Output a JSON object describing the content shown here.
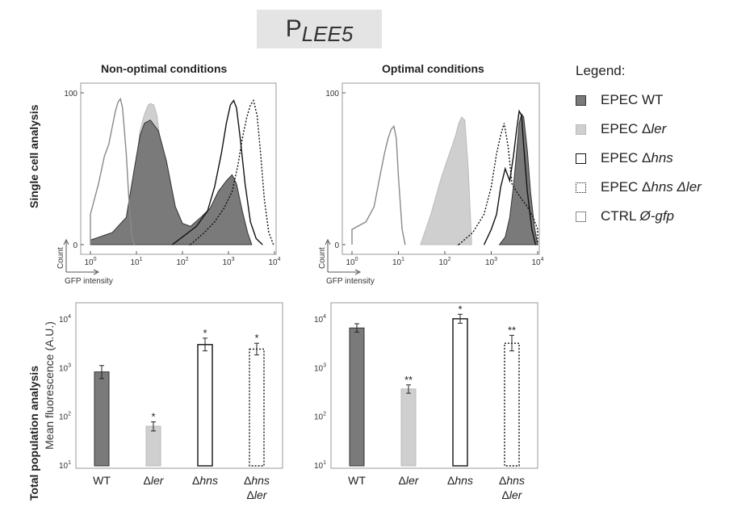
{
  "figure_title": {
    "main": "P",
    "sub": "LEE5"
  },
  "row_labels": {
    "top": "Single cell analysis",
    "bottom": "Total population analysis"
  },
  "panel_titles": {
    "left": "Non-optimal conditions",
    "right": "Optimal conditions"
  },
  "legend": {
    "heading": "Legend:",
    "items": [
      {
        "prefix": "EPEC WT",
        "italic": "",
        "style": "filled-dark"
      },
      {
        "prefix": "EPEC Δ",
        "italic": "ler",
        "style": "filled-light"
      },
      {
        "prefix": "EPEC Δ",
        "italic": "hns",
        "style": "outline-solid"
      },
      {
        "prefix": "EPEC Δ",
        "italic": "hns Δler",
        "style": "outline-dotted"
      },
      {
        "prefix": "CTRL ",
        "italic": "Ø-gfp",
        "style": "outline-gray"
      }
    ]
  },
  "colors": {
    "wt": "#7a7a7a",
    "ler": "#cfcfcf",
    "hns": "#111111",
    "ctrl": "#8a8a8a",
    "axis": "#555555"
  },
  "chart_data": [
    {
      "id": "hist-nonoptimal",
      "type": "area",
      "title": "Non-optimal conditions",
      "xlabel": "GFP intensity",
      "ylabel": "Count",
      "xscale": "log",
      "xlim": [
        1,
        10000
      ],
      "ylim": [
        0,
        100
      ],
      "yticks": [
        "0",
        "100"
      ],
      "xticks": [
        "10^0",
        "10^1",
        "10^2",
        "10^3",
        "10^4"
      ],
      "series": [
        {
          "name": "EPEC Δler",
          "style": "filled-light",
          "x": [
            6,
            8,
            10,
            12,
            15,
            18,
            20,
            24,
            28,
            35,
            45,
            60,
            80
          ],
          "y": [
            0,
            20,
            55,
            75,
            86,
            92,
            93,
            92,
            85,
            60,
            30,
            8,
            0
          ]
        },
        {
          "name": "EPEC WT",
          "style": "filled-dark",
          "x": [
            1,
            3,
            6,
            9,
            12,
            15,
            20,
            30,
            45,
            70,
            100,
            150,
            250,
            400,
            600,
            900,
            1200,
            1500,
            2000,
            2600,
            3200
          ],
          "y": [
            3,
            8,
            18,
            50,
            72,
            80,
            82,
            75,
            55,
            25,
            14,
            12,
            18,
            24,
            35,
            42,
            46,
            40,
            22,
            8,
            0
          ]
        },
        {
          "name": "CTRL Ø-gfp",
          "style": "outline-gray",
          "x": [
            1,
            1.5,
            2,
            2.5,
            3,
            3.5,
            4,
            4.5,
            5,
            6,
            7,
            8,
            9
          ],
          "y": [
            20,
            40,
            58,
            66,
            78,
            88,
            94,
            96,
            90,
            60,
            25,
            5,
            0
          ]
        },
        {
          "name": "EPEC Δhns",
          "style": "outline-solid",
          "x": [
            60,
            100,
            200,
            350,
            500,
            700,
            900,
            1100,
            1300,
            1500,
            1800,
            2300,
            3000,
            4000,
            5500
          ],
          "y": [
            0,
            5,
            12,
            22,
            38,
            60,
            80,
            92,
            95,
            90,
            70,
            40,
            15,
            4,
            0
          ]
        },
        {
          "name": "EPEC Δhns Δler",
          "style": "outline-dotted",
          "x": [
            150,
            300,
            500,
            800,
            1200,
            1600,
            2000,
            2500,
            3000,
            3500,
            4200,
            5000,
            6000,
            7500,
            9500
          ],
          "y": [
            0,
            8,
            15,
            24,
            35,
            52,
            70,
            84,
            92,
            95,
            85,
            60,
            30,
            8,
            0
          ]
        }
      ]
    },
    {
      "id": "hist-optimal",
      "type": "area",
      "title": "Optimal conditions",
      "xlabel": "GFP intensity",
      "ylabel": "Count",
      "xscale": "log",
      "xlim": [
        1,
        10000
      ],
      "ylim": [
        0,
        100
      ],
      "yticks": [
        "0",
        "100"
      ],
      "xticks": [
        "10^0",
        "10^1",
        "10^2",
        "10^3",
        "10^4"
      ],
      "series": [
        {
          "name": "EPEC Δler",
          "style": "filled-light",
          "x": [
            30,
            50,
            80,
            110,
            140,
            170,
            200,
            230,
            270,
            320,
            380
          ],
          "y": [
            0,
            20,
            42,
            55,
            64,
            72,
            80,
            84,
            82,
            50,
            0
          ]
        },
        {
          "name": "EPEC WT",
          "style": "filled-dark",
          "x": [
            1500,
            2000,
            2500,
            3000,
            3500,
            4000,
            4500,
            5000,
            6000,
            7000,
            8500,
            10000
          ],
          "y": [
            0,
            5,
            18,
            38,
            60,
            80,
            86,
            84,
            62,
            35,
            12,
            0
          ]
        },
        {
          "name": "CTRL Ø-gfp",
          "style": "outline-gray",
          "x": [
            1,
            2,
            3,
            4,
            5,
            6,
            7,
            8,
            9,
            10,
            12,
            14
          ],
          "y": [
            10,
            15,
            25,
            45,
            60,
            70,
            76,
            78,
            70,
            45,
            10,
            0
          ]
        },
        {
          "name": "EPEC Δhns",
          "style": "outline-solid",
          "x": [
            700,
            1000,
            1300,
            1600,
            2000,
            2500,
            3000,
            3500,
            4000,
            4500,
            5000,
            6000,
            7500,
            9000
          ],
          "y": [
            0,
            10,
            20,
            38,
            50,
            42,
            58,
            75,
            88,
            85,
            65,
            35,
            10,
            0
          ]
        },
        {
          "name": "EPEC Δhns Δler",
          "style": "outline-dotted",
          "x": [
            200,
            400,
            700,
            1000,
            1300,
            1600,
            1900,
            2300,
            2800,
            3500,
            4500,
            6000,
            8000,
            10000
          ],
          "y": [
            0,
            8,
            20,
            38,
            60,
            72,
            80,
            65,
            40,
            35,
            30,
            25,
            18,
            10
          ]
        }
      ]
    },
    {
      "id": "bars-nonoptimal",
      "type": "bar",
      "title": "Non-optimal conditions",
      "ylabel": "Mean fluorescence (A.U.)",
      "yscale": "log",
      "ylim": [
        10,
        20000
      ],
      "yticks": [
        "10^1",
        "10^2",
        "10^3",
        "10^4"
      ],
      "categories": [
        "WT",
        "Δler",
        "Δhns",
        "Δhns\nΔler"
      ],
      "values": [
        850,
        65,
        3100,
        2500
      ],
      "error_low": [
        620,
        52,
        2300,
        1900
      ],
      "error_high": [
        1150,
        80,
        4200,
        3300
      ],
      "significance": [
        "",
        "*",
        "*",
        "*"
      ],
      "styles": [
        "filled-dark",
        "filled-light",
        "outline-solid",
        "outline-dotted"
      ]
    },
    {
      "id": "bars-optimal",
      "type": "bar",
      "title": "Optimal conditions",
      "ylabel": "",
      "yscale": "log",
      "ylim": [
        10,
        20000
      ],
      "yticks": [
        "10^1",
        "10^2",
        "10^3",
        "10^4"
      ],
      "categories": [
        "WT",
        "Δler",
        "Δhns",
        "Δhns\nΔler"
      ],
      "values": [
        6800,
        380,
        10500,
        3300
      ],
      "error_low": [
        5600,
        310,
        8500,
        2300
      ],
      "error_high": [
        8300,
        460,
        13000,
        4800
      ],
      "significance": [
        "",
        "**",
        "*",
        "**"
      ],
      "styles": [
        "filled-dark",
        "filled-light",
        "outline-solid",
        "outline-dotted"
      ]
    }
  ]
}
